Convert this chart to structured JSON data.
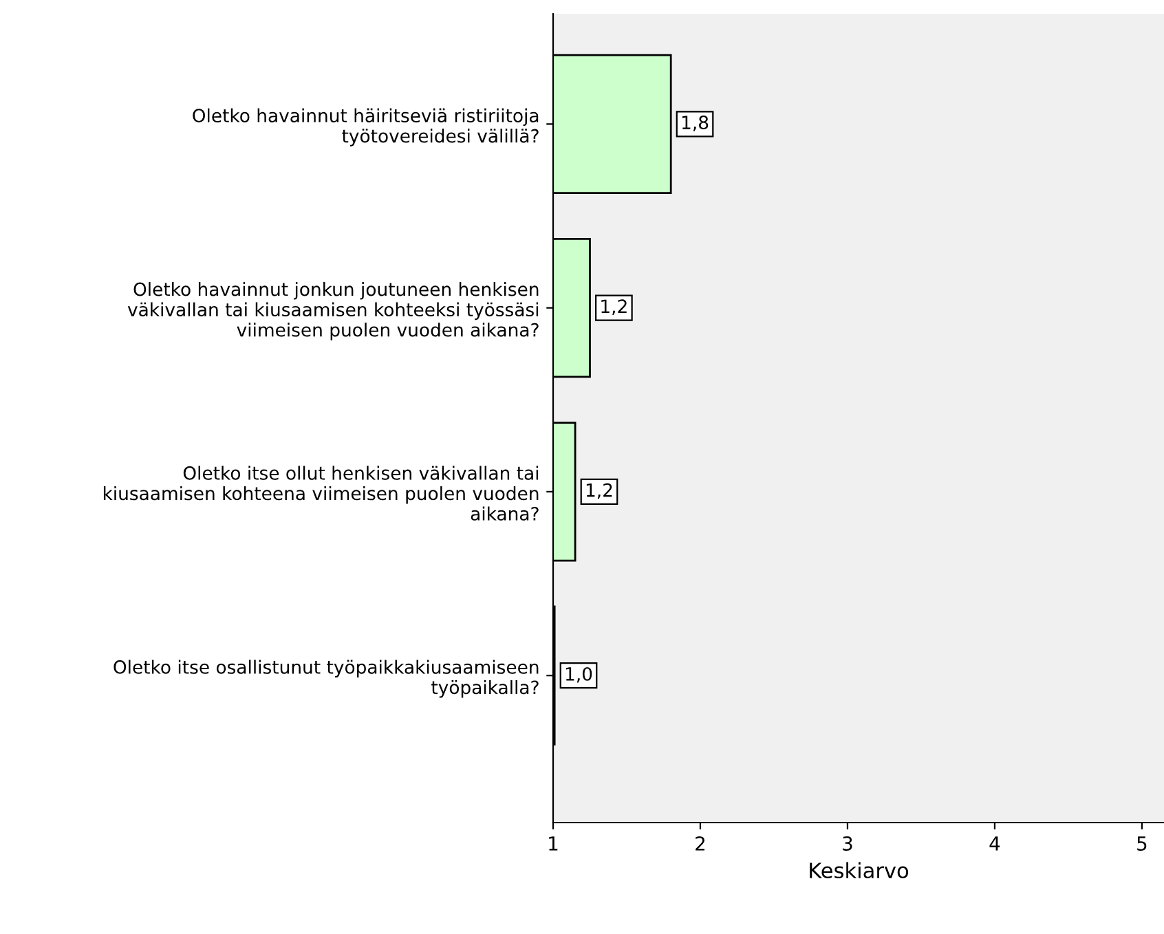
{
  "chart_data": {
    "type": "bar",
    "orientation": "horizontal",
    "xlabel": "Keskiarvo",
    "categories": [
      "Oletko havainnut häiritseviä ristiriitoja\ntyötovereidesi välillä?",
      "Oletko havainnut jonkun joutuneen henkisen\nväkivallan tai kiusaamisen kohteeksi työssäsi\nviimeisen puolen vuoden aikana?",
      "Oletko itse ollut henkisen väkivallan tai\nkiusaamisen kohteena viimeisen puolen vuoden\naikana?",
      "Oletko itse osallistunut työpaikkakiusaamiseen\ntyöpaikalla?"
    ],
    "values": [
      1.8,
      1.25,
      1.15,
      1.01
    ],
    "value_labels": [
      "1,8",
      "1,2",
      "1,2",
      "1,0"
    ],
    "color": "#ccffcc",
    "xlim": [
      1,
      5.15
    ],
    "xticks": [
      1,
      2,
      3,
      4,
      5
    ],
    "grid": false,
    "legend": false
  }
}
